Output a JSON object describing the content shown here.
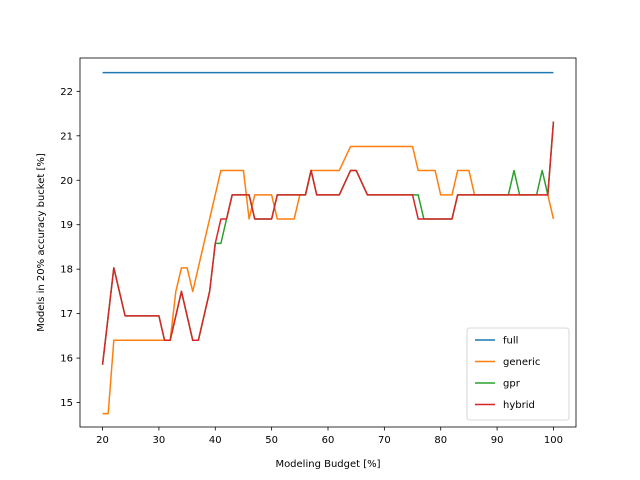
{
  "chart_data": {
    "type": "line",
    "title": "",
    "xlabel": "Modeling Budget [%]",
    "ylabel": "Models in 20% accuracy bucket [%]",
    "xlim": [
      16,
      104
    ],
    "ylim": [
      14.45,
      22.75
    ],
    "xticks": [
      20,
      30,
      40,
      50,
      60,
      70,
      80,
      90,
      100
    ],
    "yticks": [
      15,
      16,
      17,
      18,
      19,
      20,
      21,
      22
    ],
    "grid": false,
    "legend": "lower-right",
    "series": [
      {
        "name": "full",
        "color": "#1f77b4",
        "points": [
          [
            20,
            22.42
          ],
          [
            100,
            22.42
          ]
        ]
      },
      {
        "name": "generic",
        "color": "#ff7f0e",
        "points": [
          [
            20,
            14.75
          ],
          [
            21,
            14.75
          ],
          [
            22,
            16.4
          ],
          [
            30,
            16.4
          ],
          [
            31,
            16.4
          ],
          [
            32,
            16.4
          ],
          [
            33,
            17.5
          ],
          [
            34,
            18.03
          ],
          [
            35,
            18.03
          ],
          [
            36,
            17.5
          ],
          [
            41,
            20.22
          ],
          [
            45,
            20.22
          ],
          [
            46,
            19.13
          ],
          [
            47,
            19.67
          ],
          [
            50,
            19.67
          ],
          [
            51,
            19.13
          ],
          [
            54,
            19.13
          ],
          [
            55,
            19.67
          ],
          [
            56,
            19.67
          ],
          [
            57,
            20.22
          ],
          [
            62,
            20.22
          ],
          [
            64,
            20.76
          ],
          [
            75,
            20.76
          ],
          [
            76,
            20.22
          ],
          [
            79,
            20.22
          ],
          [
            80,
            19.67
          ],
          [
            82,
            19.67
          ],
          [
            83,
            20.22
          ],
          [
            85,
            20.22
          ],
          [
            86,
            19.67
          ],
          [
            99,
            19.67
          ],
          [
            100,
            19.13
          ]
        ]
      },
      {
        "name": "gpr",
        "color": "#2ca02c",
        "points": [
          [
            20,
            15.85
          ],
          [
            22,
            18.03
          ],
          [
            24,
            16.95
          ],
          [
            30,
            16.95
          ],
          [
            31,
            16.4
          ],
          [
            32,
            16.4
          ],
          [
            34,
            17.5
          ],
          [
            36,
            16.4
          ],
          [
            37,
            16.4
          ],
          [
            39,
            17.5
          ],
          [
            40,
            18.58
          ],
          [
            41,
            18.58
          ],
          [
            42,
            19.13
          ],
          [
            43,
            19.67
          ],
          [
            46,
            19.67
          ],
          [
            47,
            19.13
          ],
          [
            50,
            19.13
          ],
          [
            51,
            19.67
          ],
          [
            56,
            19.67
          ],
          [
            57,
            20.22
          ],
          [
            58,
            19.67
          ],
          [
            62,
            19.67
          ],
          [
            64,
            20.22
          ],
          [
            65,
            20.22
          ],
          [
            67,
            19.67
          ],
          [
            76,
            19.67
          ],
          [
            77,
            19.13
          ],
          [
            82,
            19.13
          ],
          [
            83,
            19.67
          ],
          [
            92,
            19.67
          ],
          [
            93,
            20.22
          ],
          [
            94,
            19.67
          ],
          [
            97,
            19.67
          ],
          [
            98,
            20.22
          ],
          [
            99,
            19.67
          ],
          [
            100,
            21.32
          ]
        ]
      },
      {
        "name": "hybrid",
        "color": "#d62728",
        "points": [
          [
            20,
            15.85
          ],
          [
            22,
            18.03
          ],
          [
            24,
            16.95
          ],
          [
            30,
            16.95
          ],
          [
            31,
            16.4
          ],
          [
            32,
            16.4
          ],
          [
            34,
            17.5
          ],
          [
            36,
            16.4
          ],
          [
            37,
            16.4
          ],
          [
            39,
            17.5
          ],
          [
            40,
            18.58
          ],
          [
            41,
            19.13
          ],
          [
            42,
            19.13
          ],
          [
            43,
            19.67
          ],
          [
            46,
            19.67
          ],
          [
            47,
            19.13
          ],
          [
            50,
            19.13
          ],
          [
            51,
            19.67
          ],
          [
            56,
            19.67
          ],
          [
            57,
            20.22
          ],
          [
            58,
            19.67
          ],
          [
            62,
            19.67
          ],
          [
            64,
            20.22
          ],
          [
            65,
            20.22
          ],
          [
            67,
            19.67
          ],
          [
            75,
            19.67
          ],
          [
            76,
            19.13
          ],
          [
            82,
            19.13
          ],
          [
            83,
            19.67
          ],
          [
            99,
            19.67
          ],
          [
            100,
            21.32
          ]
        ]
      }
    ]
  }
}
